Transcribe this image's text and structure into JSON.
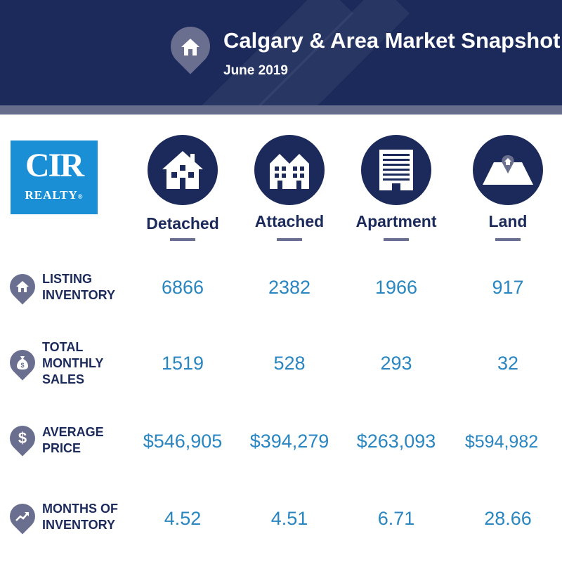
{
  "header": {
    "title": "Calgary & Area Market Snapshot",
    "subtitle": "June 2019",
    "icon": "house-icon"
  },
  "logo": {
    "top": "CIR",
    "bottom": "REALTY",
    "mark": "®"
  },
  "categories": [
    {
      "label": "Detached",
      "icon": "detached-house-icon"
    },
    {
      "label": "Attached",
      "icon": "attached-house-icon"
    },
    {
      "label": "Apartment",
      "icon": "apartment-building-icon"
    },
    {
      "label": "Land",
      "icon": "land-plot-icon"
    }
  ],
  "rows": [
    {
      "label_lines": [
        "LISTING",
        "INVENTORY"
      ],
      "icon": "house-icon",
      "values": [
        "6866",
        "2382",
        "1966",
        "917"
      ]
    },
    {
      "label_lines": [
        "TOTAL",
        "MONTHLY",
        "SALES"
      ],
      "icon": "money-bag-icon",
      "values": [
        "1519",
        "528",
        "293",
        "32"
      ]
    },
    {
      "label_lines": [
        "AVERAGE",
        "PRICE"
      ],
      "icon": "dollar-icon",
      "values": [
        "$546,905",
        "$394,279",
        "$263,093",
        "$594,982"
      ]
    },
    {
      "label_lines": [
        "MONTHS OF",
        "INVENTORY"
      ],
      "icon": "trend-up-icon",
      "values": [
        "4.52",
        "4.51",
        "6.71",
        "28.66"
      ]
    }
  ],
  "colors": {
    "navy": "#1b2a5a",
    "slate": "#6a6f90",
    "value_blue": "#2a86c0",
    "logo_blue": "#1b8fd6"
  }
}
